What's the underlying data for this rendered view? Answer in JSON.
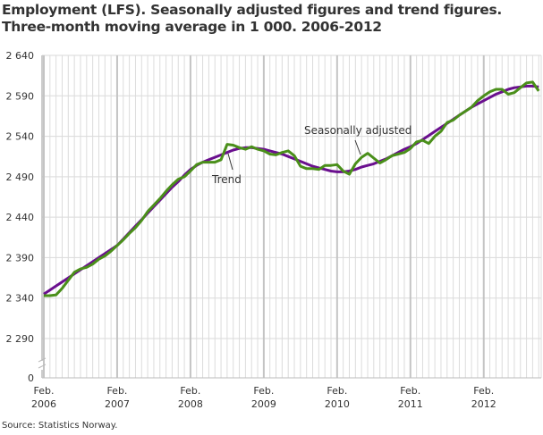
{
  "chart_data": {
    "type": "line",
    "title": "Employment (LFS). Seasonally adjusted figures and trend figures.",
    "subtitle": "Three-month moving average in 1 000. 2006-2012",
    "source": "Source: Statistics Norway.",
    "x_start": "2006-02",
    "x_end": "2012-11",
    "x_ticks": [
      {
        "month": "2006-02",
        "label1": "Feb.",
        "label2": "2006"
      },
      {
        "month": "2007-02",
        "label1": "Feb.",
        "label2": "2007"
      },
      {
        "month": "2008-02",
        "label1": "Feb.",
        "label2": "2008"
      },
      {
        "month": "2009-02",
        "label1": "Feb.",
        "label2": "2009"
      },
      {
        "month": "2010-02",
        "label1": "Feb.",
        "label2": "2010"
      },
      {
        "month": "2011-02",
        "label1": "Feb.",
        "label2": "2011"
      },
      {
        "month": "2012-02",
        "label1": "Feb.",
        "label2": "2012"
      }
    ],
    "y_ticks": [
      "2 640",
      "2 590",
      "2 540",
      "2 490",
      "2 440",
      "2 390",
      "2 340",
      "2 290",
      "0"
    ],
    "y_tick_values": [
      2640,
      2590,
      2540,
      2490,
      2440,
      2390,
      2340,
      2290,
      0
    ],
    "ylim": [
      2290,
      2640
    ],
    "y_axis_break": true,
    "grid": true,
    "series": [
      {
        "name": "Trend",
        "color": "#6a0f8e",
        "values": [
          2345,
          2350,
          2355,
          2360,
          2365,
          2370,
          2375,
          2380,
          2385,
          2390,
          2395,
          2400,
          2405,
          2413,
          2421,
          2429,
          2437,
          2445,
          2453,
          2461,
          2469,
          2477,
          2484,
          2492,
          2499,
          2504,
          2508,
          2511,
          2514,
          2517,
          2520,
          2523,
          2525,
          2526,
          2526,
          2525,
          2524,
          2522,
          2520,
          2518,
          2515,
          2512,
          2509,
          2506,
          2503,
          2501,
          2499,
          2497,
          2496,
          2496,
          2497,
          2499,
          2502,
          2504,
          2506,
          2509,
          2512,
          2516,
          2520,
          2524,
          2527,
          2531,
          2536,
          2541,
          2546,
          2551,
          2556,
          2561,
          2566,
          2571,
          2576,
          2580,
          2584,
          2588,
          2592,
          2595,
          2598,
          2600,
          2601,
          2602,
          2602,
          2601
        ]
      },
      {
        "name": "Seasonally adjusted",
        "color": "#4a8f1a",
        "values": [
          2343,
          2343,
          2344,
          2352,
          2362,
          2372,
          2376,
          2378,
          2382,
          2388,
          2392,
          2398,
          2405,
          2412,
          2420,
          2427,
          2436,
          2447,
          2455,
          2463,
          2472,
          2480,
          2487,
          2490,
          2497,
          2505,
          2508,
          2508,
          2508,
          2511,
          2530,
          2529,
          2526,
          2524,
          2527,
          2524,
          2522,
          2518,
          2517,
          2520,
          2522,
          2516,
          2503,
          2500,
          2500,
          2499,
          2504,
          2504,
          2505,
          2497,
          2493,
          2506,
          2514,
          2519,
          2513,
          2507,
          2511,
          2516,
          2518,
          2520,
          2525,
          2533,
          2535,
          2531,
          2540,
          2546,
          2557,
          2560,
          2566,
          2571,
          2576,
          2584,
          2590,
          2595,
          2598,
          2598,
          2592,
          2594,
          2600,
          2606,
          2607,
          2596
        ]
      }
    ]
  }
}
